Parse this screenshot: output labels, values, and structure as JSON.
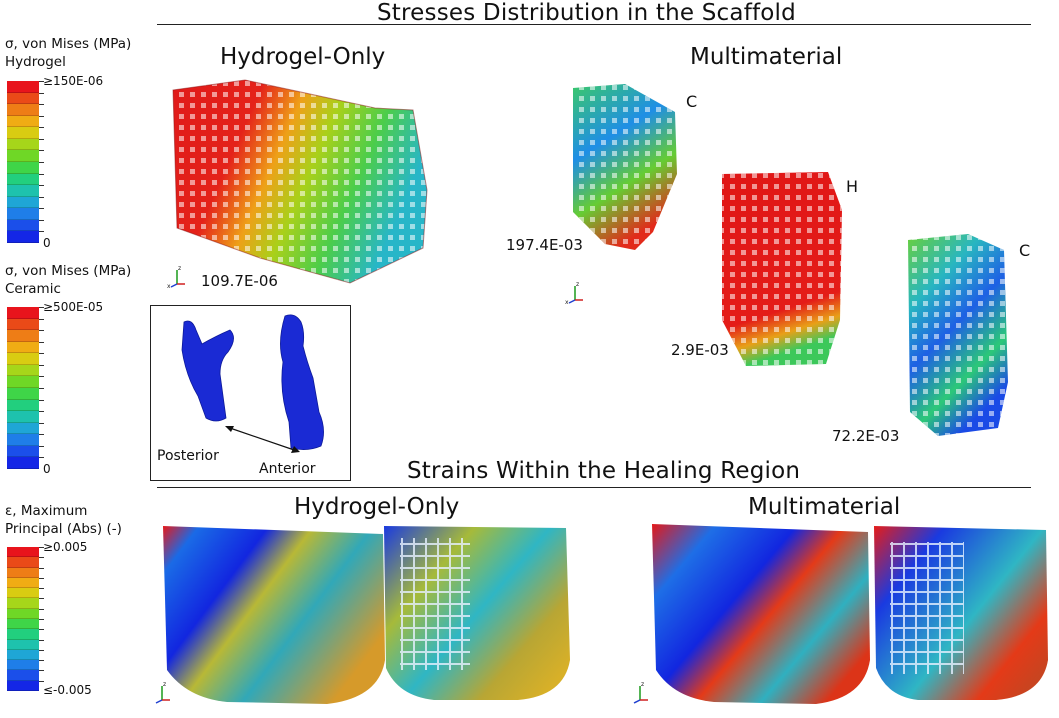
{
  "sections": {
    "stress_title": "Stresses Distribution in the Scaffold",
    "strain_title": "Strains Within the Healing Region"
  },
  "columns": {
    "hydrogel_only": "Hydrogel-Only",
    "multimaterial": "Multimaterial"
  },
  "legends": {
    "hydrogel": {
      "line1": "σ, von Mises (MPa)",
      "line2": "Hydrogel",
      "max_label": "≥150E-06",
      "min_label": "0"
    },
    "ceramic": {
      "line1": "σ, von Mises (MPa)",
      "line2": "Ceramic",
      "max_label": "≥500E-05",
      "min_label": "0"
    },
    "strain": {
      "line1": "ε, Maximum",
      "line2": "Principal (Abs) (-)",
      "max_label": "≥0.005",
      "min_label": "≤-0.005"
    },
    "colors": [
      "#e8141c",
      "#ea4a18",
      "#ee7d16",
      "#f0ac14",
      "#d9cc12",
      "#a6d61a",
      "#6fd726",
      "#3fd548",
      "#22cf7e",
      "#1ec2ad",
      "#1fa6d6",
      "#1f7ee8",
      "#1b4fea",
      "#1426e6"
    ]
  },
  "stress_values": {
    "hydrogel_only": "109.7E-06",
    "multi_c1": "197.4E-03",
    "multi_h": "2.9E-03",
    "multi_c2": "72.2E-03"
  },
  "part_labels": {
    "c1": "C",
    "h": "H",
    "c2": "C"
  },
  "inset": {
    "posterior": "Posterior",
    "anterior": "Anterior"
  },
  "axis_triad": {
    "x": "x",
    "y": "y",
    "z": "z"
  }
}
